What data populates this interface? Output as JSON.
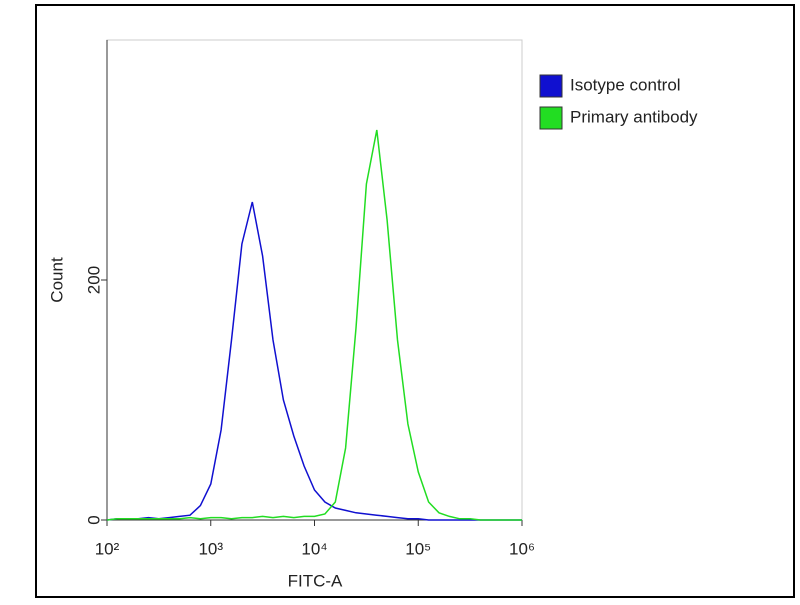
{
  "chart_data": {
    "type": "line",
    "x_label": "FITC-A",
    "y_label": "Count",
    "xscale": "log",
    "x": [
      100,
      126,
      158,
      200,
      251,
      316,
      398,
      501,
      631,
      794,
      1000,
      1259,
      1585,
      1995,
      2512,
      3162,
      3981,
      5012,
      6310,
      7943,
      10000,
      12589,
      15849,
      19953,
      25119,
      31623,
      39811,
      50119,
      63096,
      79433,
      100000,
      125893,
      158489,
      199526,
      251189,
      316228,
      398107,
      501187,
      630957,
      794328,
      1000000
    ],
    "series": [
      {
        "name": "Isotype control",
        "color": "#1010d0",
        "values": [
          0,
          1,
          1,
          1,
          2,
          1,
          2,
          3,
          4,
          12,
          30,
          75,
          150,
          230,
          265,
          220,
          150,
          100,
          70,
          45,
          25,
          15,
          10,
          8,
          6,
          5,
          4,
          3,
          2,
          1,
          1,
          0,
          0,
          0,
          0,
          0,
          0,
          0,
          0,
          0,
          0
        ]
      },
      {
        "name": "Primary antibody",
        "color": "#22dd22",
        "values": [
          0,
          1,
          1,
          1,
          1,
          1,
          1,
          1,
          2,
          1,
          2,
          2,
          1,
          2,
          2,
          3,
          2,
          3,
          2,
          3,
          3,
          5,
          15,
          60,
          160,
          280,
          325,
          250,
          150,
          80,
          40,
          15,
          6,
          3,
          1,
          1,
          0,
          0,
          0,
          0,
          0
        ]
      }
    ],
    "xlim": [
      100,
      1000000
    ],
    "ylim": [
      0,
      400
    ],
    "xticks": [
      {
        "value": 100,
        "label": "10²"
      },
      {
        "value": 1000,
        "label": "10³"
      },
      {
        "value": 10000,
        "label": "10⁴"
      },
      {
        "value": 100000,
        "label": "10⁵"
      },
      {
        "value": 1000000,
        "label": "10⁶"
      }
    ],
    "yticks": [
      0,
      200
    ],
    "legend": "top-right"
  }
}
